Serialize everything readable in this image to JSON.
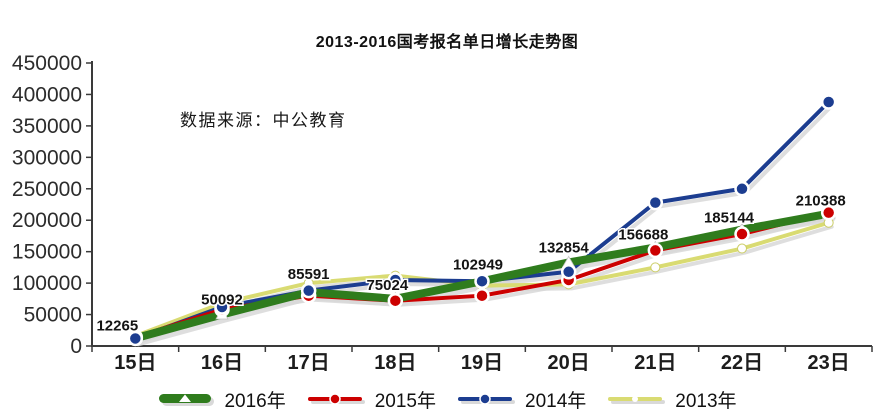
{
  "title": "2013-2016国考报名单日增长走势图",
  "source_note": "数据来源：中公教育",
  "chart_data": {
    "type": "line",
    "title": "2013-2016国考报名单日增长走势图",
    "x_categories": [
      "15日",
      "16日",
      "17日",
      "18日",
      "19日",
      "20日",
      "21日",
      "22日",
      "23日"
    ],
    "xlabel": "",
    "ylabel": "",
    "ylim": [
      0,
      450000
    ],
    "yticks": [
      0,
      50000,
      100000,
      150000,
      200000,
      250000,
      300000,
      350000,
      400000,
      450000
    ],
    "grid": false,
    "legend_position": "bottom",
    "series": [
      {
        "name": "2016年",
        "color": "#2f7c1d",
        "marker": "triangle-open",
        "line_width": 8,
        "values": [
          12265,
          50092,
          85591,
          75024,
          102949,
          132854,
          156688,
          185144,
          210388
        ],
        "data_labels": [
          "12265",
          "50092",
          "85591",
          "75024",
          "102949",
          "132854",
          "156688",
          "185144",
          "210388"
        ],
        "values_estimated": false
      },
      {
        "name": "2015年",
        "color": "#cc0000",
        "marker": "circle",
        "line_width": 4,
        "values": [
          14000,
          58000,
          80000,
          72000,
          80000,
          105000,
          152000,
          178000,
          212000
        ],
        "values_estimated": true
      },
      {
        "name": "2014年",
        "color": "#1c3d90",
        "marker": "circle",
        "line_width": 4,
        "values": [
          12000,
          62000,
          88000,
          105000,
          103000,
          118000,
          228000,
          250000,
          388000
        ],
        "values_estimated": true
      },
      {
        "name": "2013年",
        "color": "#d9db72",
        "marker": "circle-open",
        "line_width": 4,
        "values": [
          16000,
          68000,
          100000,
          112000,
          96000,
          98000,
          125000,
          155000,
          196000
        ],
        "values_estimated": true
      }
    ]
  }
}
